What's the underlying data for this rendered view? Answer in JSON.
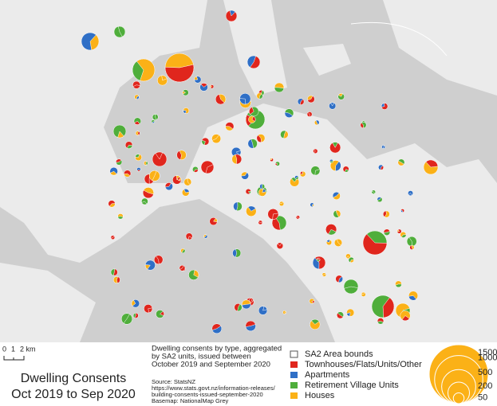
{
  "map": {
    "scale_bar": [
      "0",
      "1",
      "2 km"
    ],
    "title": [
      "Dwelling Consents",
      "Oct 2019 to Sep 2020"
    ],
    "description": [
      "Dwelling consents by type, aggregated",
      "by SA2 units, issued between",
      "October 2019 and September 2020"
    ],
    "source": [
      "Source: StatsNZ",
      "https://www.stats.govt.nz/information-releases/",
      "building-consents-issued-september-2020",
      "Basemap: NationalMap Grey"
    ],
    "legend": {
      "items": [
        {
          "label": "SA2 Area bounds",
          "color": "#ffffff"
        },
        {
          "label": "Townhouses/Flats/Units/Other",
          "color": "#e0261d"
        },
        {
          "label": "Apartments",
          "color": "#2f6fc6"
        },
        {
          "label": "Retirement Village Units",
          "color": "#4fae3b"
        },
        {
          "label": "Houses",
          "color": "#fbb117"
        }
      ],
      "sizes": [
        1500,
        1000,
        500,
        200,
        50
      ]
    }
  }
}
